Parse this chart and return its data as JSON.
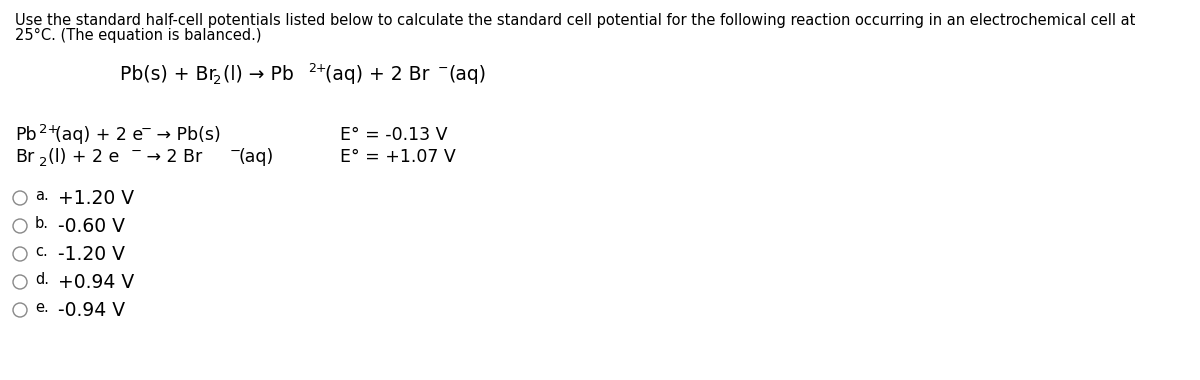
{
  "bg_color": "#ffffff",
  "instruction_line1": "Use the standard half-cell potentials listed below to calculate the standard cell potential for the following reaction occurring in an electrochemical cell at",
  "instruction_line2": "25°C. (The equation is balanced.)",
  "choices": [
    {
      "label": "a.",
      "text": "+1.20 V"
    },
    {
      "label": "b.",
      "text": "-0.60 V"
    },
    {
      "label": "c.",
      "text": "-1.20 V"
    },
    {
      "label": "d.",
      "text": "+0.94 V"
    },
    {
      "label": "e.",
      "text": "-0.94 V"
    }
  ],
  "font_size_instruction": 10.5,
  "font_size_reaction": 13.5,
  "font_size_halfcell": 12.5,
  "font_size_choices": 13.5,
  "font_size_sub": 9.5,
  "font_size_sup": 9.0
}
